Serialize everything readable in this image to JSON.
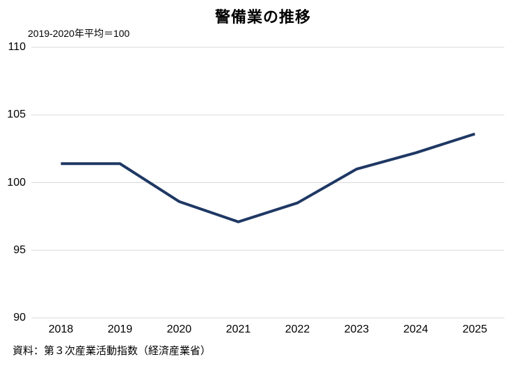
{
  "chart_data": {
    "type": "line",
    "title": "警備業の推移",
    "subtitle": "2019-2020年平均＝100",
    "source": "資料：第３次産業活動指数（経済産業省）",
    "categories": [
      "2018",
      "2019",
      "2020",
      "2021",
      "2022",
      "2023",
      "2024",
      "2025"
    ],
    "series": [
      {
        "name": "警備業",
        "values": [
          101.4,
          101.4,
          98.6,
          97.1,
          98.5,
          101.0,
          102.2,
          103.6
        ]
      }
    ],
    "xlabel": "",
    "ylabel": "",
    "ylim": [
      90,
      110
    ],
    "yticks": [
      90,
      95,
      100,
      105,
      110
    ],
    "grid": true,
    "legend": "none",
    "colors": {
      "line": "#1f3864",
      "gridline": "#d9d9d9",
      "text": "#000000",
      "background": "#ffffff"
    }
  }
}
